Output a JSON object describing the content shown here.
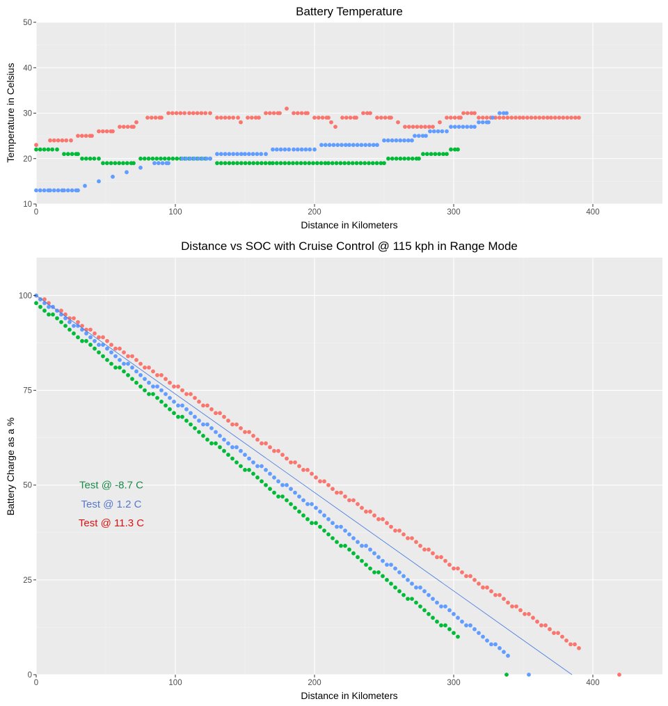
{
  "chart_data": [
    {
      "type": "scatter",
      "title": "Battery Temperature",
      "xlabel": "Distance in Kilometers",
      "ylabel": "Temperature in Celsius",
      "xlim": [
        0,
        450
      ],
      "ylim": [
        10,
        50
      ],
      "x_ticks": [
        "0",
        "100",
        "200",
        "300",
        "400"
      ],
      "y_ticks": [
        "10",
        "20",
        "30",
        "40",
        "50"
      ],
      "grid": true,
      "series": [
        {
          "color": "#F8766D",
          "points": [
            [
              0,
              23
            ],
            [
              10,
              24
            ],
            [
              25,
              24
            ],
            [
              30,
              25
            ],
            [
              40,
              25
            ],
            [
              45,
              26
            ],
            [
              55,
              26
            ],
            [
              60,
              27
            ],
            [
              70,
              27
            ],
            [
              72,
              28
            ],
            [
              80,
              29
            ],
            [
              90,
              29
            ],
            [
              95,
              30
            ],
            [
              110,
              30
            ],
            [
              125,
              30
            ],
            [
              130,
              29
            ],
            [
              145,
              29
            ],
            [
              147,
              28
            ],
            [
              152,
              29
            ],
            [
              160,
              29
            ],
            [
              165,
              30
            ],
            [
              175,
              30
            ],
            [
              180,
              31
            ],
            [
              185,
              30
            ],
            [
              195,
              30
            ],
            [
              200,
              29
            ],
            [
              210,
              29
            ],
            [
              212,
              28
            ],
            [
              215,
              27
            ],
            [
              220,
              29
            ],
            [
              230,
              29
            ],
            [
              235,
              30
            ],
            [
              240,
              30
            ],
            [
              245,
              29
            ],
            [
              255,
              29
            ],
            [
              260,
              28
            ],
            [
              265,
              27
            ],
            [
              285,
              27
            ],
            [
              290,
              28
            ],
            [
              295,
              29
            ],
            [
              305,
              29
            ],
            [
              307,
              30
            ],
            [
              315,
              30
            ],
            [
              318,
              29
            ],
            [
              330,
              29
            ],
            [
              350,
              29
            ],
            [
              370,
              29
            ],
            [
              390,
              29
            ]
          ]
        },
        {
          "color": "#00BA38",
          "points": [
            [
              0,
              22
            ],
            [
              15,
              22
            ],
            [
              20,
              21
            ],
            [
              30,
              21
            ],
            [
              33,
              20
            ],
            [
              45,
              20
            ],
            [
              48,
              19
            ],
            [
              70,
              19
            ],
            [
              75,
              20
            ],
            [
              110,
              20
            ],
            [
              125,
              20
            ],
            [
              130,
              19
            ],
            [
              170,
              19
            ],
            [
              210,
              19
            ],
            [
              250,
              19
            ],
            [
              253,
              20
            ],
            [
              275,
              20
            ],
            [
              278,
              21
            ],
            [
              295,
              21
            ],
            [
              298,
              22
            ],
            [
              303,
              22
            ]
          ]
        },
        {
          "color": "#619CFF",
          "points": [
            [
              0,
              13
            ],
            [
              10,
              13
            ],
            [
              20,
              13
            ],
            [
              30,
              13
            ],
            [
              35,
              14
            ],
            [
              45,
              15
            ],
            [
              55,
              16
            ],
            [
              65,
              17
            ],
            [
              75,
              18
            ],
            [
              85,
              19
            ],
            [
              95,
              19
            ],
            [
              105,
              20
            ],
            [
              125,
              20
            ],
            [
              130,
              21
            ],
            [
              150,
              21
            ],
            [
              165,
              21
            ],
            [
              170,
              22
            ],
            [
              185,
              22
            ],
            [
              200,
              22
            ],
            [
              205,
              23
            ],
            [
              225,
              23
            ],
            [
              245,
              23
            ],
            [
              250,
              24
            ],
            [
              270,
              24
            ],
            [
              272,
              25
            ],
            [
              280,
              25
            ],
            [
              283,
              26
            ],
            [
              295,
              26
            ],
            [
              298,
              27
            ],
            [
              315,
              27
            ],
            [
              318,
              28
            ],
            [
              325,
              28
            ],
            [
              328,
              29
            ],
            [
              333,
              30
            ],
            [
              338,
              30
            ]
          ]
        }
      ]
    },
    {
      "type": "scatter",
      "title": "Distance vs SOC with Cruise Control @ 115 kph in Range Mode",
      "xlabel": "Distance in Kilometers",
      "ylabel": "Battery Charge as a %",
      "xlim": [
        0,
        450
      ],
      "ylim": [
        0,
        110
      ],
      "x_ticks": [
        "0",
        "100",
        "200",
        "300",
        "400"
      ],
      "y_ticks": [
        "0",
        "25",
        "50",
        "75",
        "100"
      ],
      "grid": true,
      "trend_line": {
        "color": "#4C7FE0",
        "x0": 0,
        "y0": 100,
        "x1": 385,
        "y1": 0
      },
      "series": [
        {
          "color": "#F8766D",
          "x_start": 0,
          "y_start": 100,
          "x_end": 390,
          "y_end": 7,
          "extra_points": [
            [
              419,
              0
            ]
          ]
        },
        {
          "color": "#619CFF",
          "x_start": 0,
          "y_start": 100,
          "x_end": 339,
          "y_end": 5,
          "extra_points": [
            [
              354,
              0
            ]
          ]
        },
        {
          "color": "#00BA38",
          "x_start": 0,
          "y_start": 98,
          "x_end": 303,
          "y_end": 10,
          "extra_points": [
            [
              338,
              0
            ]
          ]
        }
      ],
      "annotations": [
        {
          "text": "Test @   -8.7  C",
          "color": "#1A8A4A",
          "x": 54,
          "y": 50
        },
        {
          "text": "Test @   1.2  C",
          "color": "#5577CC",
          "x": 54,
          "y": 45
        },
        {
          "text": "Test @   11.3  C",
          "color": "#DD1111",
          "x": 54,
          "y": 40
        }
      ]
    }
  ]
}
